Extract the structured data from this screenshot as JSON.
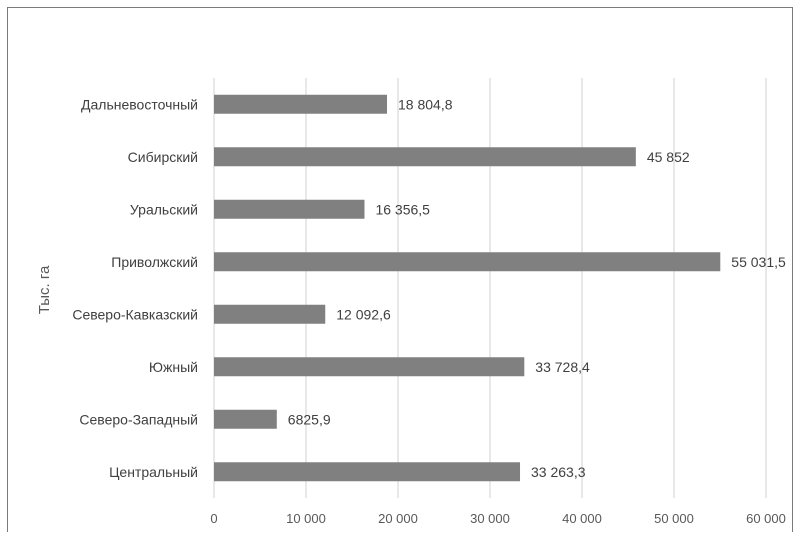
{
  "chart_data": {
    "type": "bar",
    "orientation": "horizontal",
    "ylabel": "Тыс. га",
    "categories": [
      "Дальневосточный",
      "Сибирский",
      "Уральский",
      "Приволжский",
      "Северо-Кавказский",
      "Южный",
      "Северо-Западный",
      "Центральный"
    ],
    "values": [
      18804.8,
      45852,
      16356.5,
      55031.5,
      12092.6,
      33728.4,
      6825.9,
      33263.3
    ],
    "data_labels": [
      "18 804,8",
      "45 852",
      "16 356,5",
      "55 031,5",
      "12 092,6",
      "33 728,4",
      "6825,9",
      "33 263,3"
    ],
    "xlim": [
      0,
      60000
    ],
    "x_ticks": [
      0,
      10000,
      20000,
      30000,
      40000,
      50000,
      60000
    ],
    "x_tick_labels": [
      "0",
      "10 000",
      "20 000",
      "30 000",
      "40 000",
      "50 000",
      "60 000"
    ],
    "grid": "vertical",
    "bar_color": "#808080",
    "legend": "none"
  }
}
